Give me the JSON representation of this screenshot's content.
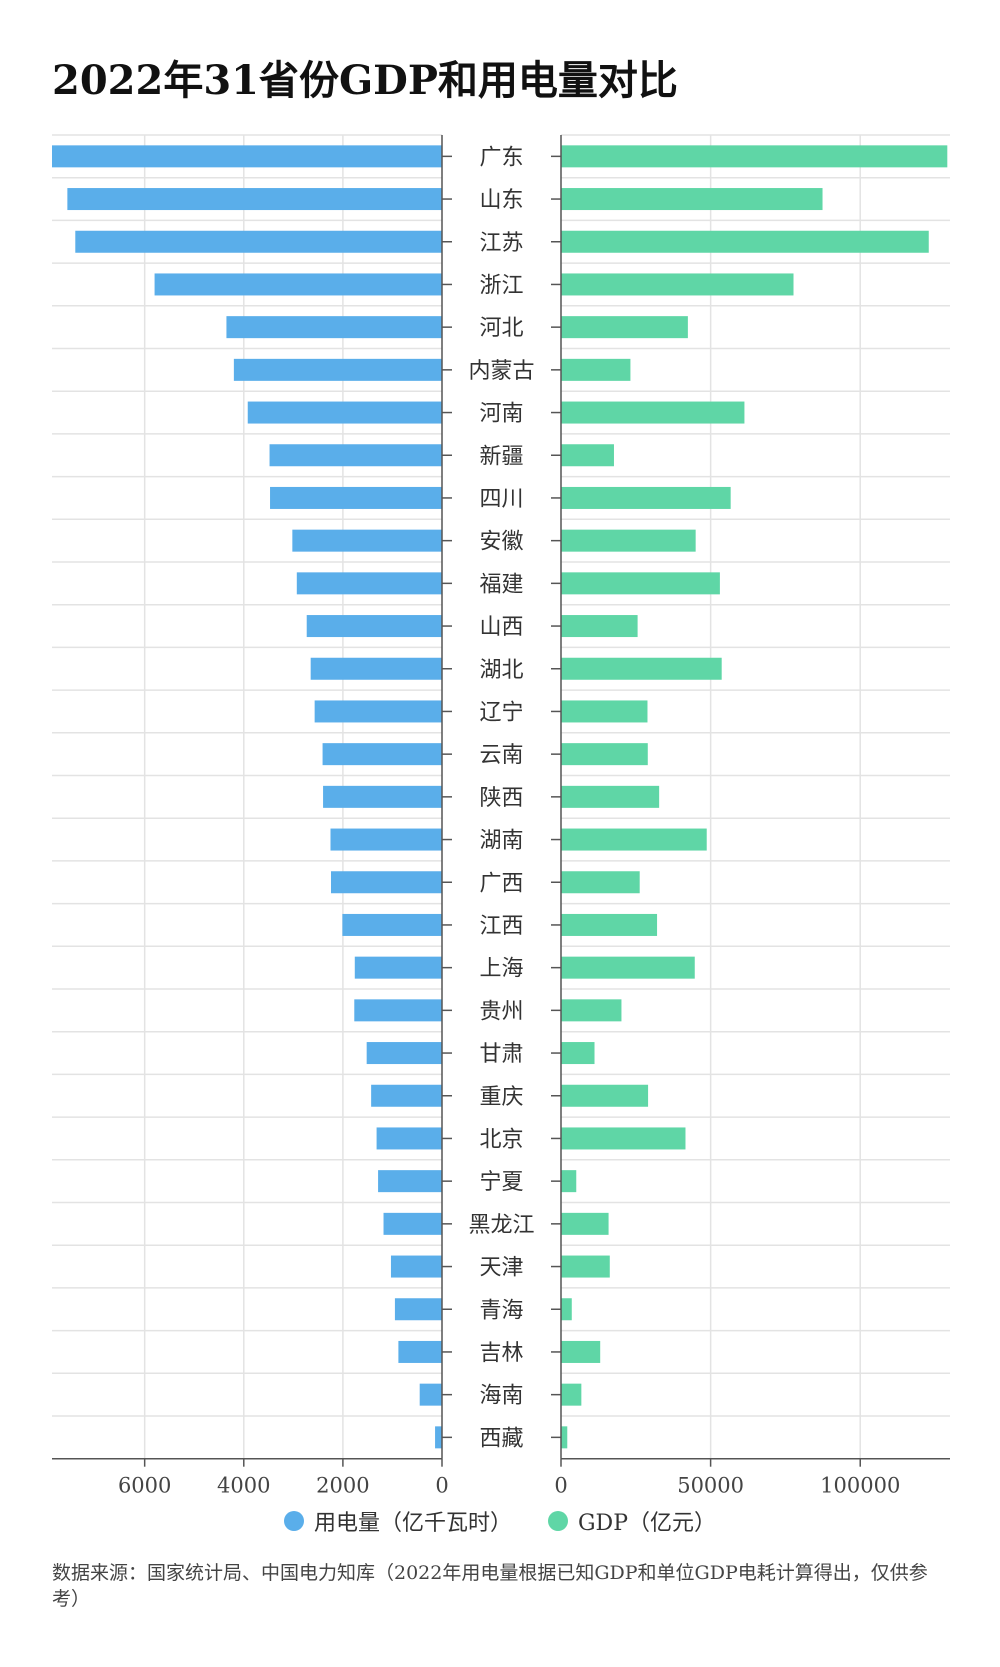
{
  "title": "2022年31省份GDP和用电量对比",
  "colors": {
    "electricity": "#5aaeea",
    "gdp": "#5fd6a6",
    "grid": "#e3e3e3",
    "axis": "#555555"
  },
  "legend": {
    "electricity_label": "用电量（亿千瓦时）",
    "gdp_label": "GDP（亿元）"
  },
  "source": "数据来源：国家统计局、中国电力知库（2022年用电量根据已知GDP和单位GDP电耗计算得出，仅供参考）",
  "chart_data": {
    "type": "bar",
    "orientation": "horizontal-butterfly",
    "title": "2022年31省份GDP和用电量对比",
    "categories": [
      "广东",
      "山东",
      "江苏",
      "浙江",
      "河北",
      "内蒙古",
      "河南",
      "新疆",
      "四川",
      "安徽",
      "福建",
      "山西",
      "湖北",
      "辽宁",
      "云南",
      "陕西",
      "湖南",
      "广西",
      "江西",
      "上海",
      "贵州",
      "甘肃",
      "重庆",
      "北京",
      "宁夏",
      "黑龙江",
      "天津",
      "青海",
      "吉林",
      "海南",
      "西藏"
    ],
    "series": [
      {
        "name": "用电量（亿千瓦时）",
        "side": "left",
        "values": [
          7870,
          7560,
          7400,
          5800,
          4350,
          4200,
          3920,
          3480,
          3470,
          3020,
          2930,
          2730,
          2650,
          2570,
          2410,
          2400,
          2250,
          2240,
          2010,
          1760,
          1770,
          1520,
          1430,
          1320,
          1290,
          1180,
          1030,
          950,
          880,
          450,
          140
        ]
      },
      {
        "name": "GDP（亿元）",
        "side": "right",
        "values": [
          129100,
          87400,
          122900,
          77700,
          42400,
          23200,
          61300,
          17700,
          56700,
          45000,
          53100,
          25600,
          53700,
          28900,
          29000,
          32800,
          48700,
          26300,
          32100,
          44700,
          20200,
          11200,
          29100,
          41600,
          5100,
          15900,
          16300,
          3600,
          13100,
          6800,
          2100
        ]
      }
    ],
    "left_axis": {
      "range": [
        0,
        7870
      ],
      "ticks": [
        6000,
        4000,
        2000,
        0
      ],
      "tick_labels": [
        "6000",
        "4000",
        "2000",
        "0"
      ]
    },
    "right_axis": {
      "range": [
        0,
        130000
      ],
      "ticks": [
        0,
        50000,
        100000
      ],
      "tick_labels": [
        "0",
        "50000",
        "100000"
      ]
    },
    "grid": true,
    "legend_position": "bottom"
  }
}
